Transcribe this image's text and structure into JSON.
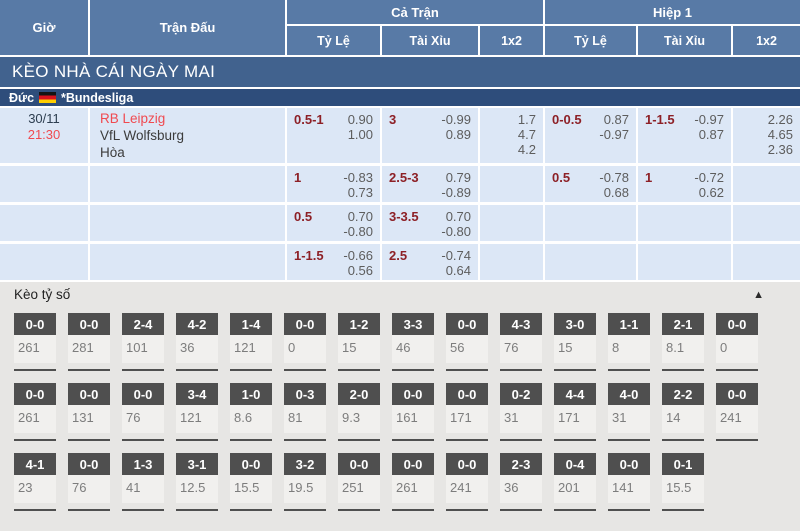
{
  "header": {
    "col_time": "Giờ",
    "col_match": "Trận Đấu",
    "group_full": "Cả Trận",
    "group_half": "Hiệp 1",
    "sub_handicap": "Tỷ Lệ",
    "sub_overunder": "Tài Xỉu",
    "sub_1x2": "1x2"
  },
  "banner": {
    "title": "KÈO NHÀ CÁI NGÀY MAI"
  },
  "league": {
    "country": "Đức",
    "flag_icon": "germany-flag",
    "name": "*Bundesliga"
  },
  "match": {
    "date": "30/11",
    "time": "21:30",
    "home": "RB Leipzig",
    "away": "VfL Wolfsburg",
    "draw_label": "Hòa"
  },
  "odds_rows": [
    {
      "ft_handicap": {
        "line": "0.5-1",
        "odds": [
          "0.90",
          "1.00"
        ]
      },
      "ft_overunder": {
        "line": "3",
        "odds": [
          "-0.99",
          "0.89"
        ]
      },
      "ft_1x2": [
        "1.7",
        "4.7",
        "4.2"
      ],
      "h1_handicap": {
        "line": "0-0.5",
        "odds": [
          "0.87",
          "-0.97"
        ]
      },
      "h1_overunder": {
        "line": "1-1.5",
        "odds": [
          "-0.97",
          "0.87"
        ]
      },
      "h1_1x2": [
        "2.26",
        "4.65",
        "2.36"
      ]
    },
    {
      "ft_handicap": {
        "line": "1",
        "odds": [
          "-0.83",
          "0.73"
        ]
      },
      "ft_overunder": {
        "line": "2.5-3",
        "odds": [
          "0.79",
          "-0.89"
        ]
      },
      "ft_1x2": [],
      "h1_handicap": {
        "line": "0.5",
        "odds": [
          "-0.78",
          "0.68"
        ]
      },
      "h1_overunder": {
        "line": "1",
        "odds": [
          "-0.72",
          "0.62"
        ]
      },
      "h1_1x2": []
    },
    {
      "ft_handicap": {
        "line": "0.5",
        "odds": [
          "0.70",
          "-0.80"
        ]
      },
      "ft_overunder": {
        "line": "3-3.5",
        "odds": [
          "0.70",
          "-0.80"
        ]
      },
      "ft_1x2": [],
      "h1_handicap": null,
      "h1_overunder": null,
      "h1_1x2": []
    },
    {
      "ft_handicap": {
        "line": "1-1.5",
        "odds": [
          "-0.66",
          "0.56"
        ]
      },
      "ft_overunder": {
        "line": "2.5",
        "odds": [
          "-0.74",
          "0.64"
        ]
      },
      "ft_1x2": [],
      "h1_handicap": null,
      "h1_overunder": null,
      "h1_1x2": []
    }
  ],
  "score_section": {
    "title": "Kèo tỷ số",
    "collapse_icon": "chevron-up-icon",
    "collapse_glyph": "▲",
    "rows": [
      [
        {
          "score": "0-0",
          "odds": "261"
        },
        {
          "score": "0-0",
          "odds": "281"
        },
        {
          "score": "2-4",
          "odds": "101"
        },
        {
          "score": "4-2",
          "odds": "36"
        },
        {
          "score": "1-4",
          "odds": "121"
        },
        {
          "score": "0-0",
          "odds": "0"
        },
        {
          "score": "1-2",
          "odds": "15"
        },
        {
          "score": "3-3",
          "odds": "46"
        },
        {
          "score": "0-0",
          "odds": "56"
        },
        {
          "score": "4-3",
          "odds": "76"
        },
        {
          "score": "3-0",
          "odds": "15"
        },
        {
          "score": "1-1",
          "odds": "8"
        },
        {
          "score": "2-1",
          "odds": "8.1"
        },
        {
          "score": "0-0",
          "odds": "0"
        }
      ],
      [
        {
          "score": "0-0",
          "odds": "261"
        },
        {
          "score": "0-0",
          "odds": "131"
        },
        {
          "score": "0-0",
          "odds": "76"
        },
        {
          "score": "3-4",
          "odds": "121"
        },
        {
          "score": "1-0",
          "odds": "8.6"
        },
        {
          "score": "0-3",
          "odds": "81"
        },
        {
          "score": "2-0",
          "odds": "9.3"
        },
        {
          "score": "0-0",
          "odds": "161"
        },
        {
          "score": "0-0",
          "odds": "171"
        },
        {
          "score": "0-2",
          "odds": "31"
        },
        {
          "score": "4-4",
          "odds": "171"
        },
        {
          "score": "4-0",
          "odds": "31"
        },
        {
          "score": "2-2",
          "odds": "14"
        },
        {
          "score": "0-0",
          "odds": "241"
        }
      ],
      [
        {
          "score": "4-1",
          "odds": "23"
        },
        {
          "score": "0-0",
          "odds": "76"
        },
        {
          "score": "1-3",
          "odds": "41"
        },
        {
          "score": "3-1",
          "odds": "12.5"
        },
        {
          "score": "0-0",
          "odds": "15.5"
        },
        {
          "score": "3-2",
          "odds": "19.5"
        },
        {
          "score": "0-0",
          "odds": "251"
        },
        {
          "score": "0-0",
          "odds": "261"
        },
        {
          "score": "0-0",
          "odds": "241"
        },
        {
          "score": "2-3",
          "odds": "36"
        },
        {
          "score": "0-4",
          "odds": "201"
        },
        {
          "score": "0-0",
          "odds": "141"
        },
        {
          "score": "0-1",
          "odds": "15.5"
        }
      ]
    ]
  }
}
